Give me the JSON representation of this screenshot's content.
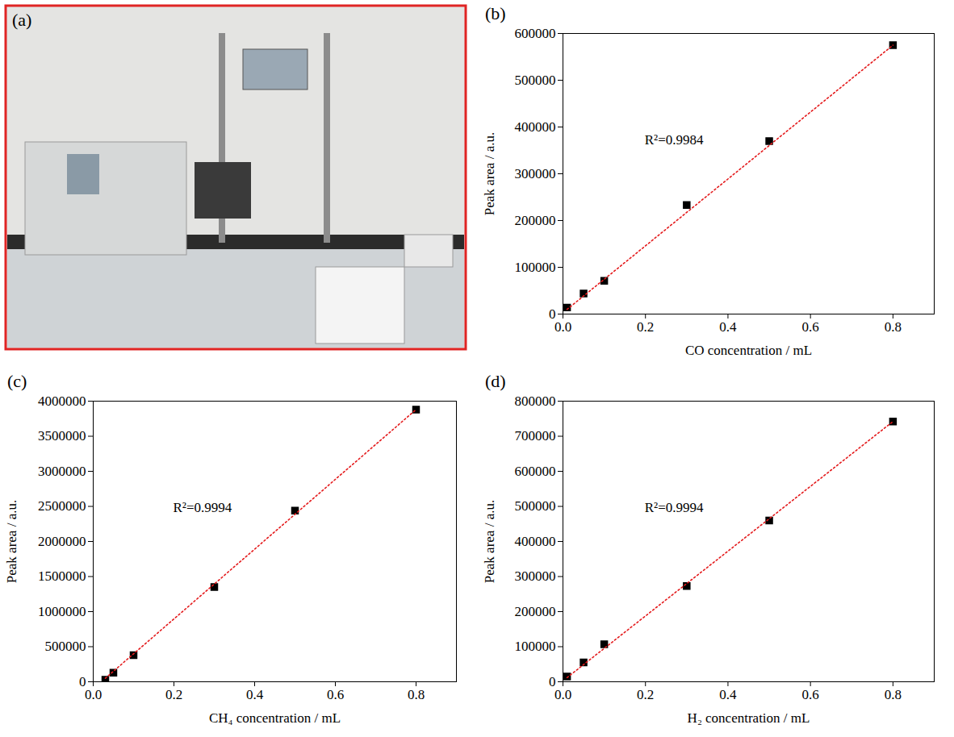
{
  "chart_data": [
    {
      "type": "image",
      "title": "(a)",
      "color": "#e02424"
    },
    {
      "type": "scatter",
      "title": "(b)",
      "xlabel": "CO concentration / mL",
      "ylabel": "Peak area / a.u.",
      "xlim": [
        0,
        0.9
      ],
      "ylim": [
        0,
        600000
      ],
      "xticks": [
        {
          "value": 0,
          "label": "0.0"
        },
        0.2,
        0.4,
        0.6,
        0.8
      ],
      "yticks": [
        0,
        100000,
        200000,
        300000,
        400000,
        500000,
        600000
      ],
      "annotations": [
        {
          "text": "R²=0.9984"
        }
      ],
      "series": [
        {
          "type": "scatter",
          "marker": "square",
          "color": "#000000",
          "x": [
            0.01,
            0.05,
            0.1,
            0.3,
            0.5,
            0.8
          ],
          "values": [
            14000,
            44000,
            71000,
            233000,
            370000,
            575000
          ]
        },
        {
          "type": "line",
          "line_style": "dotted",
          "color": "#e41a1c",
          "x": [
            0.01,
            0.8
          ],
          "values": [
            10000,
            575000
          ]
        }
      ]
    },
    {
      "type": "scatter",
      "title": "(c)",
      "xlabel": "CH₄ concentration / mL",
      "ylabel": "Peak area / a.u.",
      "xlim": [
        0,
        0.9
      ],
      "ylim": [
        0,
        4000000
      ],
      "xticks": [
        {
          "value": 0,
          "label": "0.0"
        },
        0.2,
        0.4,
        0.6,
        0.8
      ],
      "yticks": [
        0,
        500000,
        1000000,
        1500000,
        2000000,
        2500000,
        3000000,
        3500000,
        4000000
      ],
      "annotations": [
        {
          "text": "R²=0.9994"
        }
      ],
      "series": [
        {
          "type": "scatter",
          "marker": "square",
          "color": "#000000",
          "x": [
            0.03,
            0.05,
            0.1,
            0.3,
            0.5,
            0.8
          ],
          "values": [
            30000,
            130000,
            380000,
            1350000,
            2440000,
            3880000
          ]
        },
        {
          "type": "line",
          "line_style": "dotted",
          "color": "#e41a1c",
          "x": [
            0.03,
            0.8
          ],
          "values": [
            50000,
            3880000
          ]
        }
      ]
    },
    {
      "type": "scatter",
      "title": "(d)",
      "xlabel": "H₂ concentration / mL",
      "ylabel": "Peak area / a.u.",
      "xlim": [
        0,
        0.9
      ],
      "ylim": [
        0,
        800000
      ],
      "xticks": [
        {
          "value": 0,
          "label": "0.0"
        },
        0.2,
        0.4,
        0.6,
        0.8
      ],
      "yticks": [
        0,
        100000,
        200000,
        300000,
        400000,
        500000,
        600000,
        700000,
        800000
      ],
      "annotations": [
        {
          "text": "R²=0.9994"
        }
      ],
      "series": [
        {
          "type": "scatter",
          "marker": "square",
          "color": "#000000",
          "x": [
            0.01,
            0.05,
            0.1,
            0.3,
            0.5,
            0.8
          ],
          "values": [
            15000,
            55000,
            107000,
            273000,
            460000,
            742000
          ]
        },
        {
          "type": "line",
          "line_style": "dotted",
          "color": "#e41a1c",
          "x": [
            0.01,
            0.8
          ],
          "values": [
            12000,
            742000
          ]
        }
      ]
    }
  ]
}
